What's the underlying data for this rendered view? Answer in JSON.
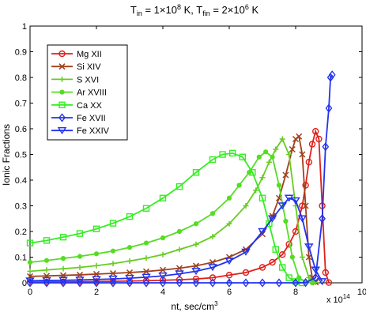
{
  "chart_data": {
    "type": "line",
    "title_parts": {
      "t_in_prefix": "T",
      "t_in_sub": "in",
      "t_in_value": " = 1×10",
      "t_in_exp": "8",
      "t_in_unit": " K, T",
      "t_fin_sub": "fin",
      "t_fin_value": " = 2×10",
      "t_fin_exp": "6",
      "t_fin_unit": " K"
    },
    "xlabel": "nt, sec/cm",
    "xlabel_exp": "3",
    "ylabel": "Ionic Fractions",
    "x_multiplier": "x 10",
    "x_multiplier_exp": "14",
    "xlim": [
      0,
      10
    ],
    "ylim": [
      0,
      1
    ],
    "xticks": [
      0,
      2,
      4,
      6,
      8,
      10
    ],
    "yticks": [
      0,
      0.1,
      0.2,
      0.3,
      0.4,
      0.5,
      0.6,
      0.7,
      0.8,
      0.9,
      1
    ],
    "xtick_labels": [
      "0",
      "2",
      "4",
      "6",
      "8",
      "10"
    ],
    "ytick_labels": [
      "0",
      "0.1",
      "0.2",
      "0.3",
      "0.4",
      "0.5",
      "0.6",
      "0.7",
      "0.8",
      "0.9",
      "1"
    ],
    "grid": false,
    "legend_position": "top-left",
    "series": [
      {
        "name": "Mg XII",
        "color": "#e0201a",
        "marker": "circle",
        "x": [
          0,
          0.5,
          1.0,
          1.5,
          2.0,
          2.5,
          3.0,
          3.5,
          4.0,
          4.5,
          5.0,
          5.5,
          6.0,
          6.5,
          7.0,
          7.3,
          7.6,
          7.8,
          8.0,
          8.2,
          8.3,
          8.4,
          8.5,
          8.6,
          8.7,
          8.8,
          8.9,
          9.0
        ],
        "y": [
          0.003,
          0.003,
          0.004,
          0.004,
          0.005,
          0.006,
          0.007,
          0.008,
          0.01,
          0.012,
          0.015,
          0.02,
          0.03,
          0.04,
          0.06,
          0.08,
          0.11,
          0.15,
          0.2,
          0.3,
          0.38,
          0.47,
          0.54,
          0.59,
          0.56,
          0.3,
          0.04,
          0.001
        ]
      },
      {
        "name": "Si XIV",
        "color": "#a0401a",
        "marker": "x",
        "x": [
          0,
          0.5,
          1.0,
          1.5,
          2.0,
          2.5,
          3.0,
          3.5,
          4.0,
          4.5,
          5.0,
          5.5,
          6.0,
          6.5,
          7.0,
          7.3,
          7.5,
          7.7,
          7.9,
          8.0,
          8.1,
          8.2,
          8.3,
          8.4,
          8.5,
          8.6
        ],
        "y": [
          0.025,
          0.027,
          0.029,
          0.031,
          0.034,
          0.037,
          0.04,
          0.044,
          0.05,
          0.057,
          0.066,
          0.08,
          0.1,
          0.13,
          0.19,
          0.26,
          0.33,
          0.42,
          0.52,
          0.56,
          0.57,
          0.5,
          0.3,
          0.1,
          0.02,
          0.002
        ]
      },
      {
        "name": "S  XVI",
        "color": "#66cc22",
        "marker": "plus",
        "x": [
          0,
          0.5,
          1.0,
          1.5,
          2.0,
          2.5,
          3.0,
          3.5,
          4.0,
          4.5,
          5.0,
          5.5,
          6.0,
          6.5,
          6.8,
          7.0,
          7.2,
          7.4,
          7.6,
          7.8,
          8.0,
          8.2,
          8.4,
          8.6
        ],
        "y": [
          0.045,
          0.05,
          0.055,
          0.06,
          0.067,
          0.075,
          0.085,
          0.096,
          0.11,
          0.13,
          0.15,
          0.18,
          0.23,
          0.3,
          0.36,
          0.41,
          0.47,
          0.52,
          0.56,
          0.5,
          0.3,
          0.1,
          0.02,
          0.002
        ]
      },
      {
        "name": "Ar XVIII",
        "color": "#55dd22",
        "marker": "dot",
        "x": [
          0,
          0.5,
          1.0,
          1.5,
          2.0,
          2.5,
          3.0,
          3.5,
          4.0,
          4.5,
          5.0,
          5.5,
          6.0,
          6.3,
          6.6,
          6.9,
          7.1,
          7.3,
          7.5,
          7.7,
          7.9,
          8.1,
          8.3,
          8.5
        ],
        "y": [
          0.08,
          0.087,
          0.095,
          0.103,
          0.113,
          0.124,
          0.138,
          0.155,
          0.175,
          0.2,
          0.23,
          0.27,
          0.33,
          0.38,
          0.43,
          0.49,
          0.51,
          0.49,
          0.38,
          0.24,
          0.1,
          0.02,
          0.003,
          0.0
        ]
      },
      {
        "name": "Ca XX",
        "color": "#33ee22",
        "marker": "square",
        "x": [
          0,
          0.5,
          1.0,
          1.5,
          2.0,
          2.5,
          3.0,
          3.5,
          4.0,
          4.5,
          5.0,
          5.5,
          5.8,
          6.1,
          6.4,
          6.7,
          7.0,
          7.2,
          7.4,
          7.6,
          7.8,
          8.0,
          8.2
        ],
        "y": [
          0.155,
          0.165,
          0.178,
          0.192,
          0.21,
          0.232,
          0.258,
          0.29,
          0.33,
          0.375,
          0.43,
          0.48,
          0.5,
          0.505,
          0.49,
          0.43,
          0.33,
          0.23,
          0.13,
          0.06,
          0.02,
          0.005,
          0.0
        ]
      },
      {
        "name": "Fe XVII",
        "color": "#2233ee",
        "marker": "diamond",
        "x": [
          0,
          0.5,
          1.0,
          1.5,
          2.0,
          2.5,
          3.0,
          3.5,
          4.0,
          4.5,
          5.0,
          5.5,
          6.0,
          6.5,
          7.0,
          7.5,
          8.0,
          8.3,
          8.6,
          8.8,
          8.9,
          9.0,
          9.05,
          9.1
        ],
        "y": [
          0.0,
          0.0,
          0.0,
          0.0,
          0.0,
          0.0,
          0.0,
          0.0,
          0.0,
          0.0,
          0.0,
          0.0,
          0.0,
          0.0,
          0.0,
          0.0,
          0.0,
          0.001,
          0.02,
          0.25,
          0.53,
          0.68,
          0.8,
          0.81
        ]
      },
      {
        "name": "Fe XXIV",
        "color": "#2233ee",
        "marker": "triangle-down",
        "x": [
          0,
          0.5,
          1.0,
          1.5,
          2.0,
          2.5,
          3.0,
          3.5,
          4.0,
          4.5,
          5.0,
          5.5,
          6.0,
          6.5,
          7.0,
          7.3,
          7.6,
          7.8,
          8.0,
          8.2,
          8.4,
          8.6,
          8.8
        ],
        "y": [
          0.008,
          0.009,
          0.01,
          0.011,
          0.013,
          0.015,
          0.018,
          0.022,
          0.027,
          0.035,
          0.045,
          0.06,
          0.085,
          0.12,
          0.2,
          0.25,
          0.3,
          0.33,
          0.32,
          0.25,
          0.14,
          0.05,
          0.005
        ]
      }
    ]
  }
}
